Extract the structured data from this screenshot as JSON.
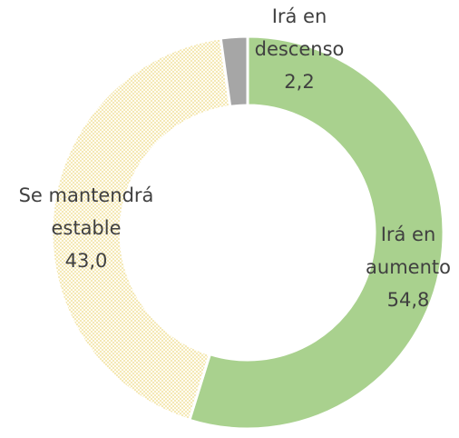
{
  "chart_data": {
    "type": "donut",
    "categories": [
      "Irá en aumento",
      "Se mantendrá estable",
      "Irá en descenso"
    ],
    "values": [
      54.8,
      43.0,
      2.2
    ],
    "value_labels": [
      "54,8",
      "43,0",
      "2,2"
    ],
    "colors": [
      "#a9d18e",
      "#f3e3a6",
      "#a6a6a6"
    ],
    "patterns": [
      null,
      "dots",
      null
    ]
  }
}
